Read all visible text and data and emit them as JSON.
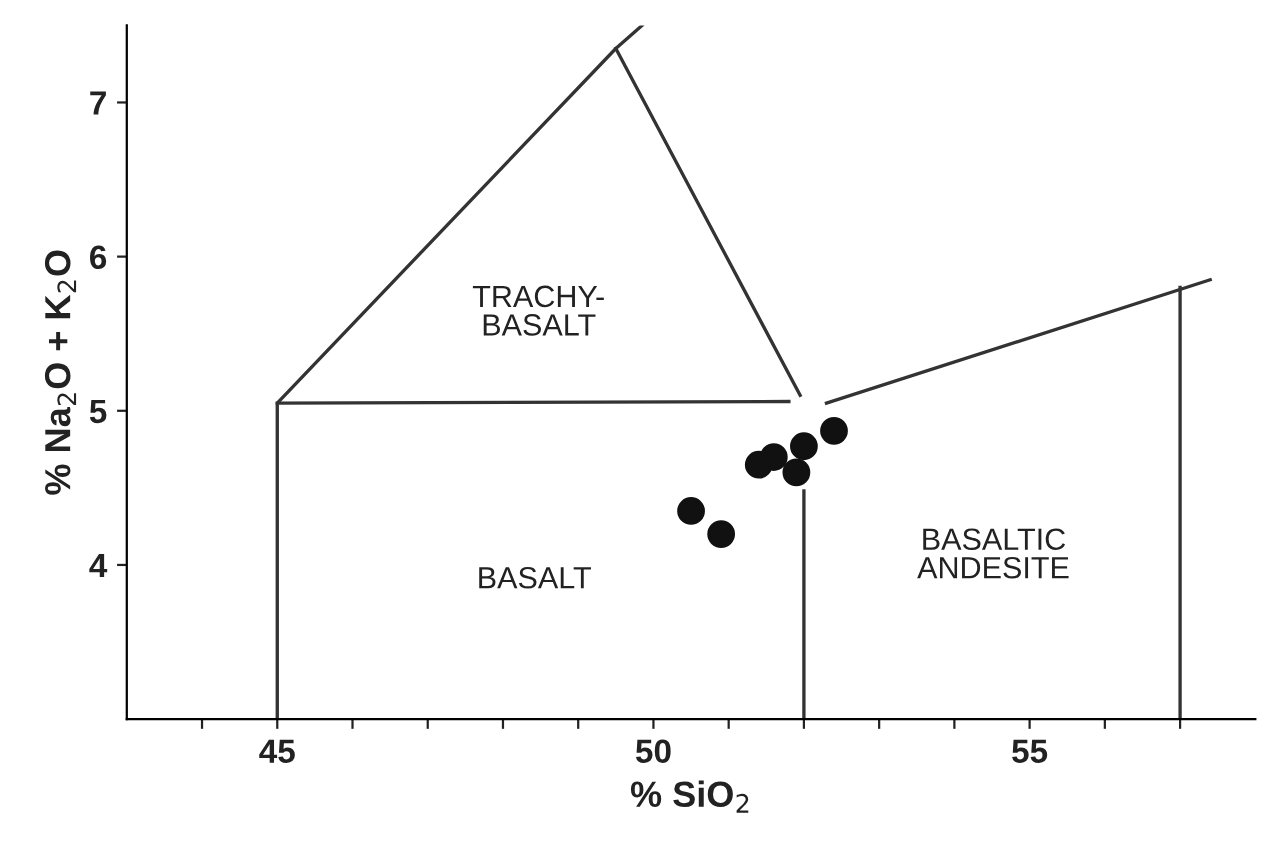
{
  "chart_data": {
    "type": "scatter",
    "xlabel": "% SiO$_{2}$",
    "ylabel": "% Na$_{2}$O + K$_{2}$O",
    "xlim": [
      43,
      58
    ],
    "ylim": [
      3,
      7.5
    ],
    "xticks": [
      {
        "value": 44,
        "label": null
      },
      45,
      {
        "value": 46,
        "label": null
      },
      {
        "value": 47,
        "label": null
      },
      {
        "value": 48,
        "label": null
      },
      {
        "value": 49,
        "label": null
      },
      50,
      {
        "value": 51,
        "label": null
      },
      {
        "value": 52,
        "label": null
      },
      {
        "value": 53,
        "label": null
      },
      {
        "value": 54,
        "label": null
      },
      55,
      {
        "value": 56,
        "label": null
      },
      {
        "value": 57,
        "label": null
      }
    ],
    "yticks": [
      4,
      5,
      6,
      7
    ],
    "grid": false,
    "legend": false,
    "series": [
      {
        "color": "#111111",
        "marker": "circle",
        "x": [
          50.5,
          50.9,
          51.4,
          51.6,
          51.9,
          52.0,
          52.4
        ],
        "values": [
          4.35,
          4.2,
          4.65,
          4.7,
          4.6,
          4.77,
          4.87
        ]
      },
      {
        "type": "line",
        "color": "#333333",
        "marker": "none",
        "line_style": "solid",
        "x": [
          45,
          45,
          49.5,
          49.85
        ],
        "values": [
          3,
          5.05,
          7.35,
          7.5
        ]
      },
      {
        "type": "line",
        "color": "#333333",
        "marker": "none",
        "line_style": "solid",
        "x": [
          49.5,
          51.95
        ],
        "values": [
          7.35,
          5.1
        ]
      },
      {
        "type": "line",
        "color": "#333333",
        "marker": "none",
        "line_style": "solid",
        "x": [
          45,
          51.8
        ],
        "values": [
          5.05,
          5.06
        ]
      },
      {
        "type": "line",
        "color": "#333333",
        "marker": "none",
        "line_style": "solid",
        "x": [
          52.3,
          57.4
        ],
        "values": [
          5.05,
          5.85
        ]
      },
      {
        "type": "line",
        "color": "#333333",
        "marker": "none",
        "line_style": "solid",
        "x": [
          57,
          57
        ],
        "values": [
          3,
          5.8
        ]
      },
      {
        "type": "line",
        "color": "#333333",
        "marker": "none",
        "line_style": "solid",
        "x": [
          52,
          52
        ],
        "values": [
          3,
          4.48
        ]
      }
    ],
    "annotations": [
      "TRACHY-\nBASALT",
      "BASALT",
      "BASALTIC\nANDESITE"
    ]
  }
}
